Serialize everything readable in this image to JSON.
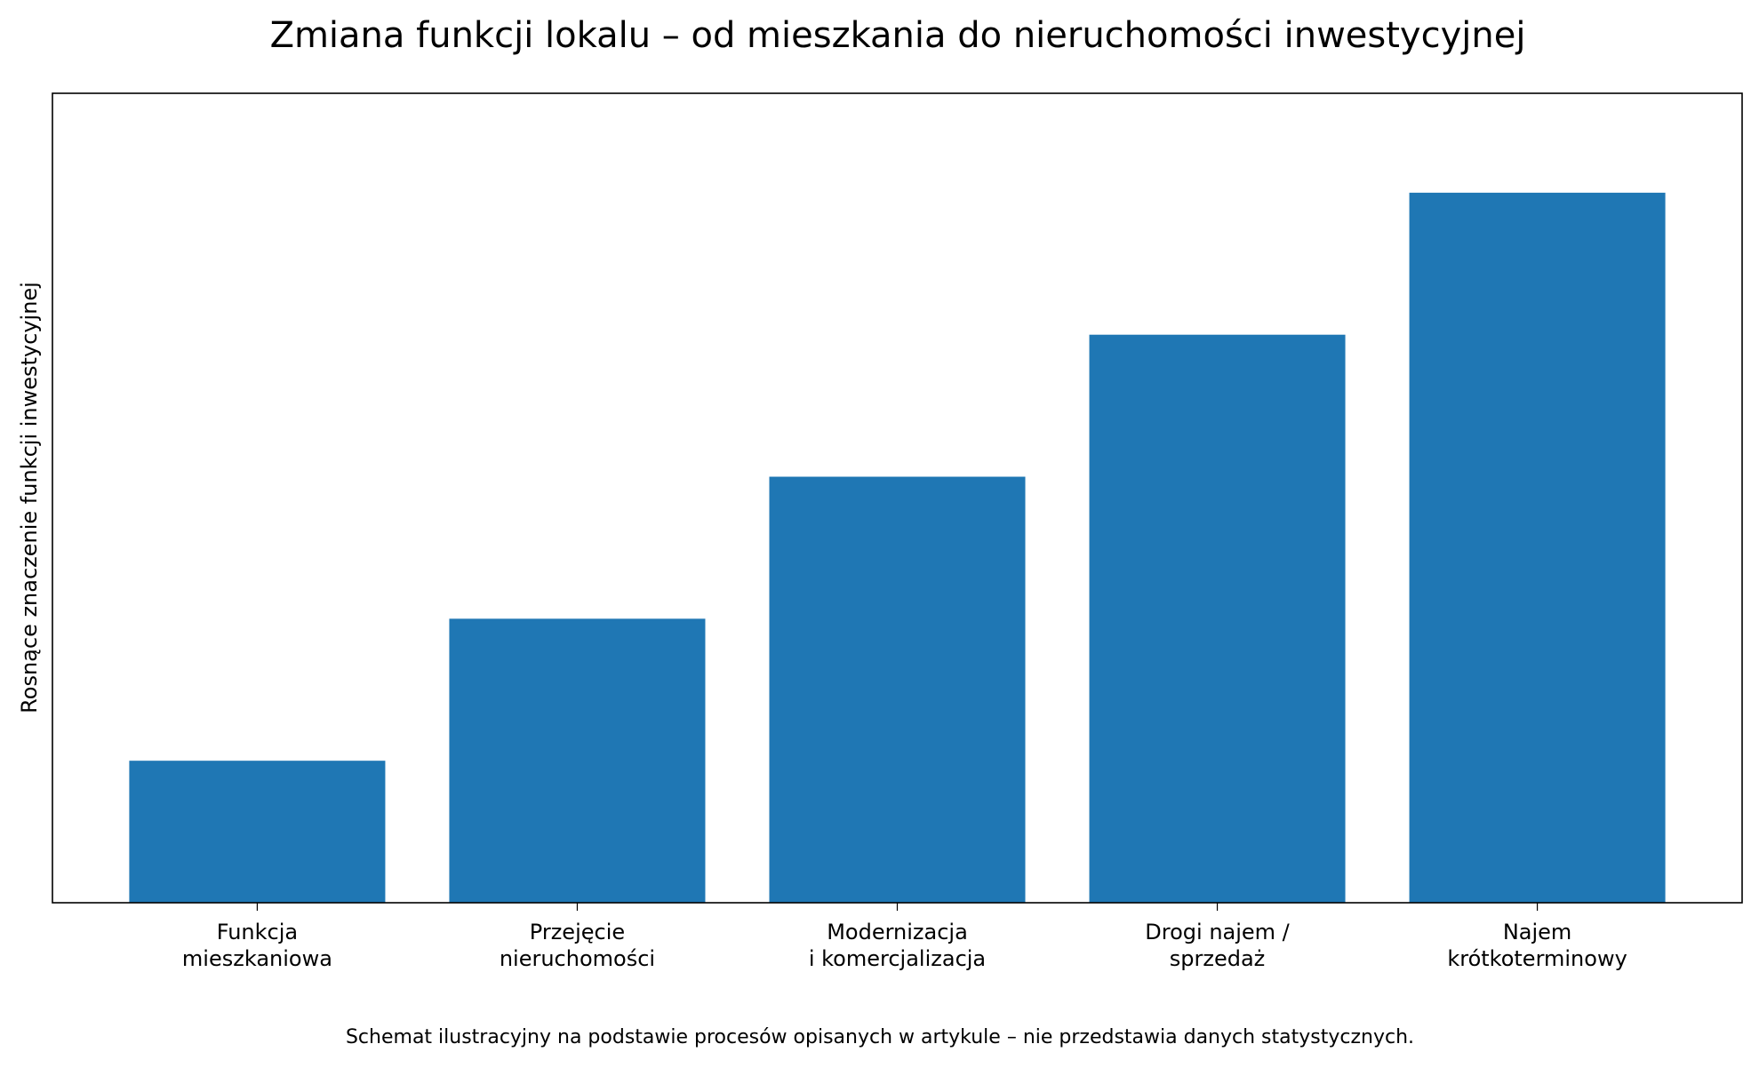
{
  "chart_data": {
    "type": "bar",
    "title": "Zmiana funkcji lokalu – od mieszkania do nieruchomości inwestycyjnej",
    "y_label": "Rosnące znaczenie funkcji inwestycyjnej",
    "footnote": "Schemat ilustracyjny na podstawie procesów opisanych w artykule – nie przedstawia danych statystycznych.",
    "categories": [
      "Funkcja\nmieszkaniowa",
      "Przejęcie\nnieruchomości",
      "Modernizacja\ni komercjalizacja",
      "Drogi najem /\nsprzedaż",
      "Najem\nkrótkoterminowy"
    ],
    "values": [
      1,
      2,
      3,
      4,
      5
    ],
    "color": "#1f77b4",
    "ylim": [
      0,
      5.7
    ]
  }
}
